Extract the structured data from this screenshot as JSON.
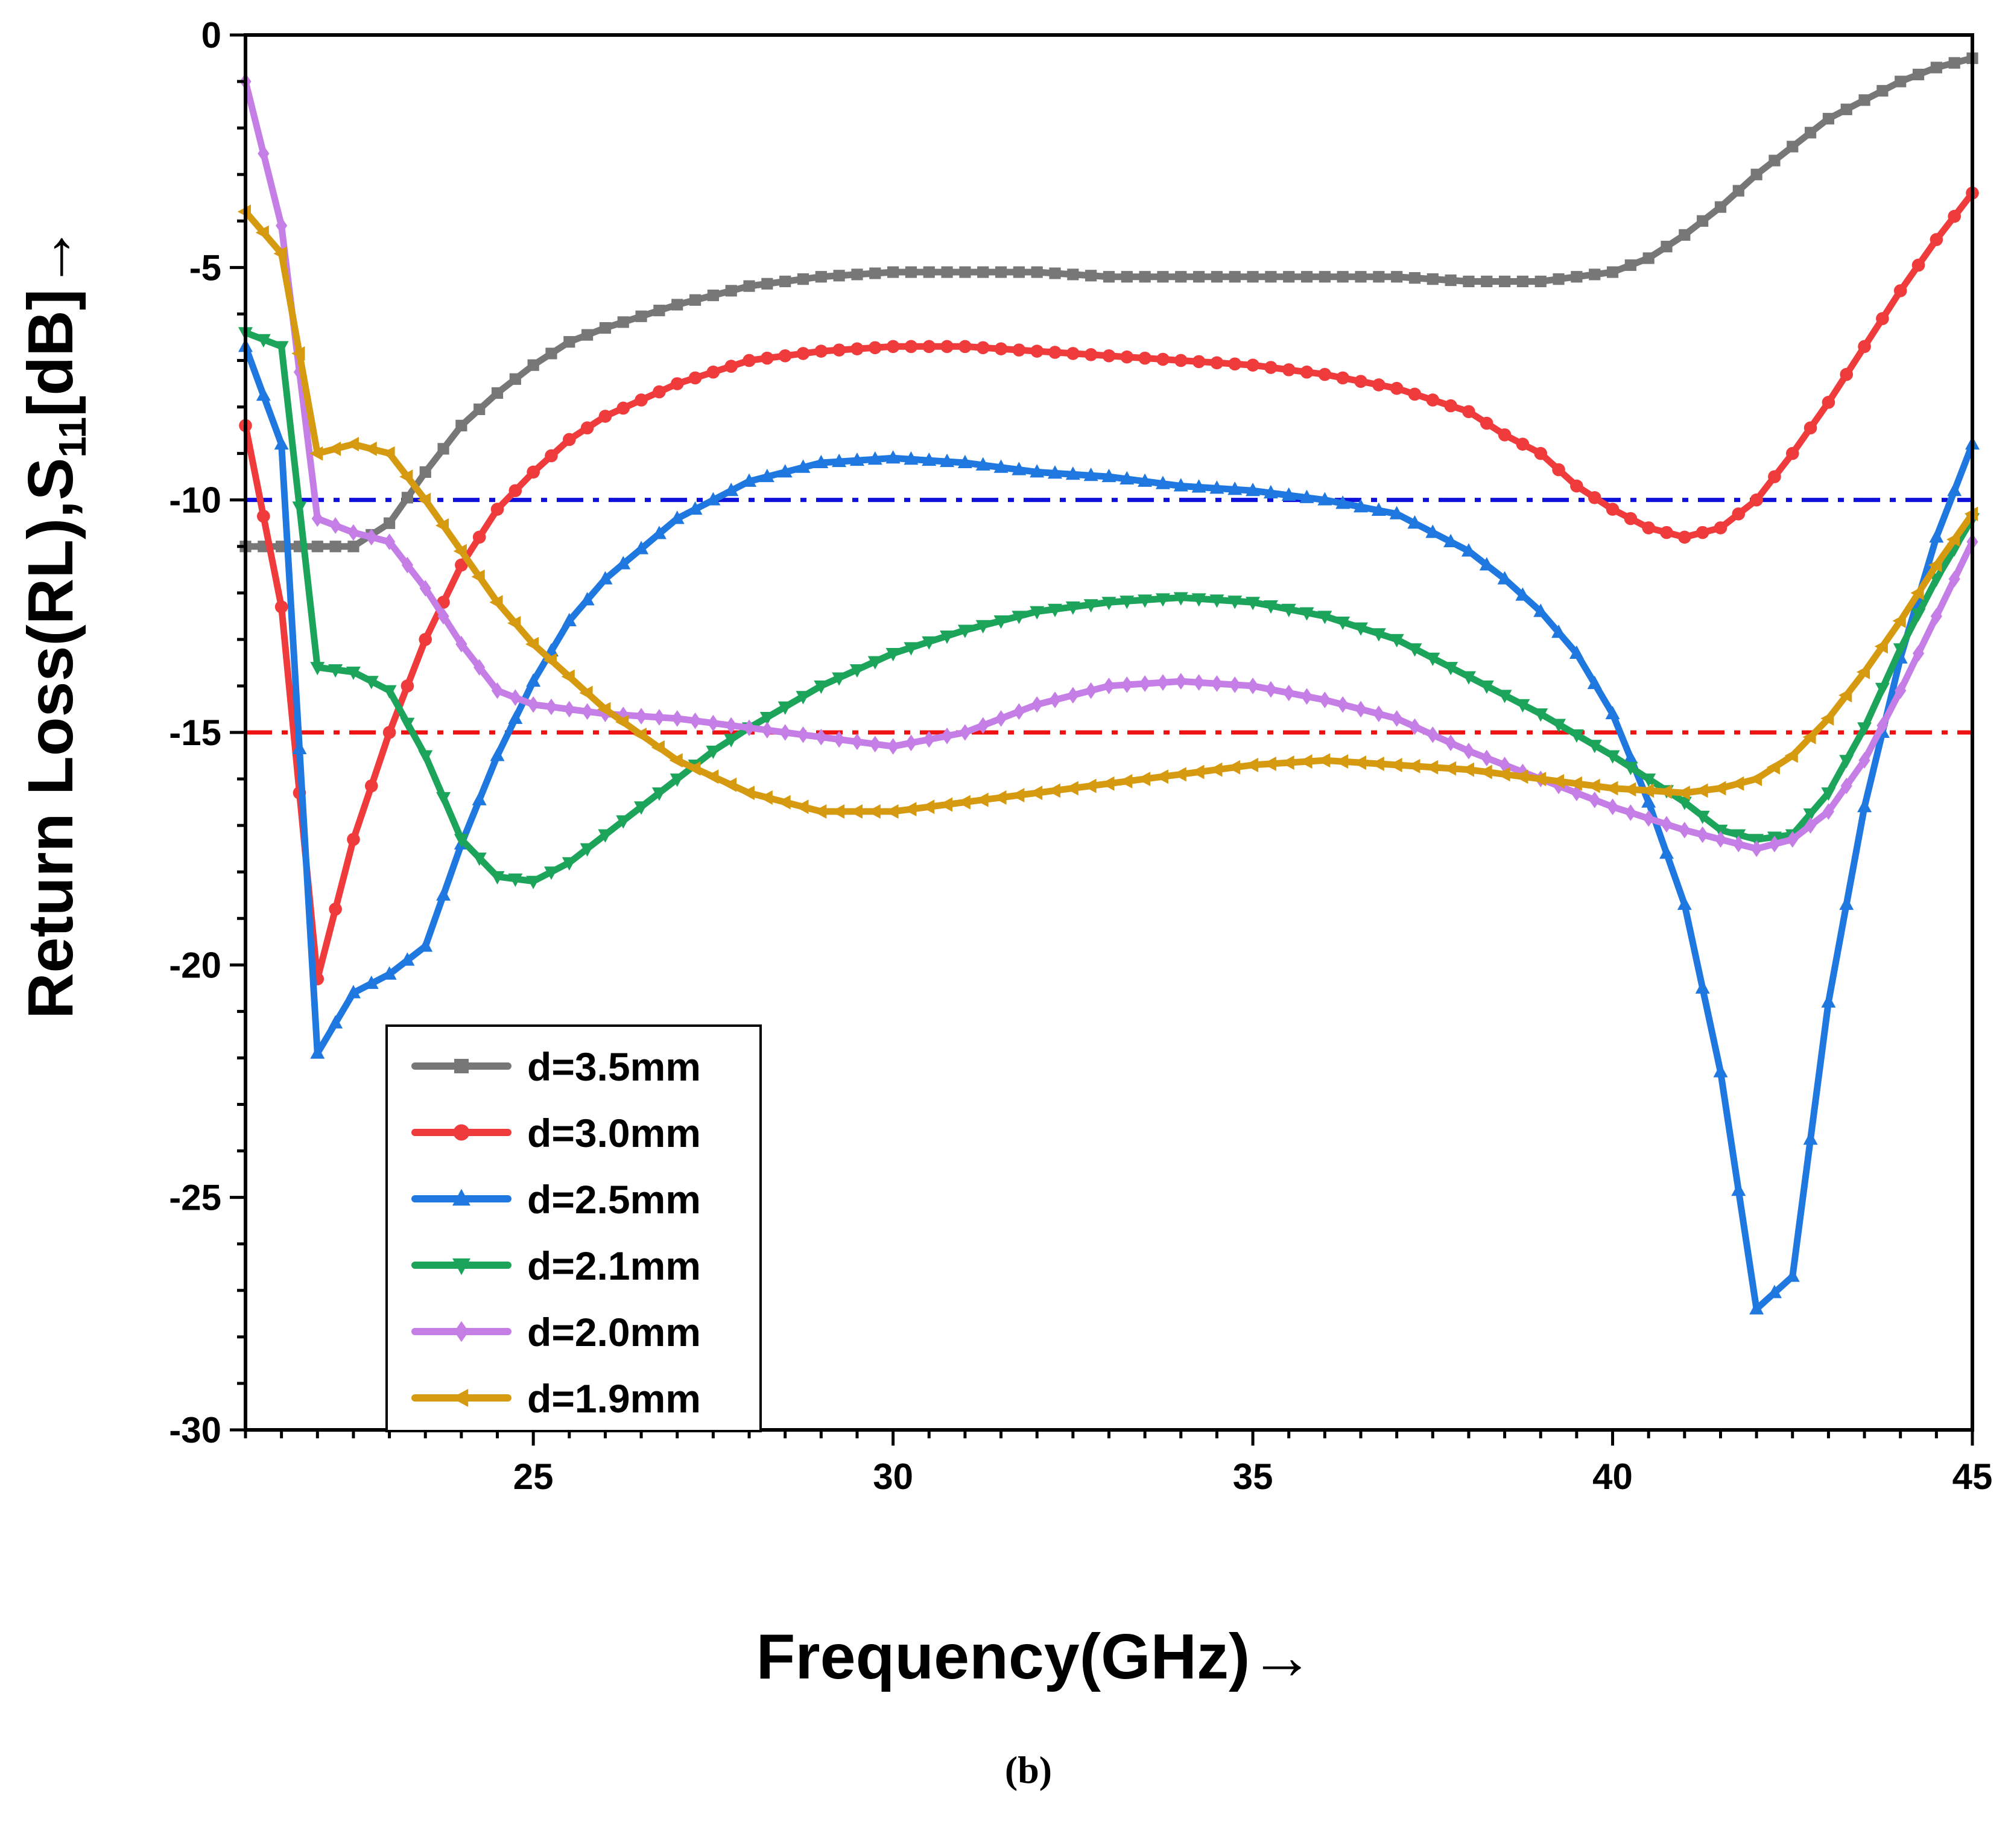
{
  "chart_data": {
    "type": "line",
    "title": "",
    "xlabel": "Frequency(GHz)→",
    "ylabel_parts": {
      "main": "Return Loss(RL),S",
      "sub": "11",
      "tail": "[dB]→"
    },
    "xlim": [
      21,
      45
    ],
    "ylim": [
      -30,
      0
    ],
    "x_ticks": [
      25,
      30,
      35,
      40,
      45
    ],
    "y_ticks": [
      0,
      -5,
      -10,
      -15,
      -20,
      -25,
      -30
    ],
    "x_tick_labels": [
      "25",
      "30",
      "35",
      "40",
      "45"
    ],
    "y_tick_labels": [
      "0",
      "-5",
      "-10",
      "-15",
      "-20",
      "-25",
      "-30"
    ],
    "x_minor_step": 0.5,
    "y_minor_step": 1,
    "grid": false,
    "legend_position": "bottom-left",
    "panel_label": "(b)",
    "reference_lines": [
      {
        "name": "-10 dB",
        "y": -10,
        "color": "#1010dd",
        "style": "dash-dot"
      },
      {
        "name": "-15 dB",
        "y": -15,
        "color": "#ee1111",
        "style": "dash-dot"
      }
    ],
    "series": [
      {
        "name": "d=3.5mm",
        "color": "#777777",
        "marker": "square",
        "points": [
          [
            21,
            -11
          ],
          [
            22,
            -11
          ],
          [
            22.5,
            -11
          ],
          [
            23,
            -10.5
          ],
          [
            23.5,
            -9.4
          ],
          [
            24,
            -8.4
          ],
          [
            24.5,
            -7.7
          ],
          [
            25,
            -7.1
          ],
          [
            25.5,
            -6.6
          ],
          [
            26,
            -6.3
          ],
          [
            27,
            -5.8
          ],
          [
            28,
            -5.4
          ],
          [
            29,
            -5.2
          ],
          [
            30,
            -5.1
          ],
          [
            31,
            -5.1
          ],
          [
            32,
            -5.1
          ],
          [
            33,
            -5.2
          ],
          [
            34,
            -5.2
          ],
          [
            35,
            -5.2
          ],
          [
            36,
            -5.2
          ],
          [
            37,
            -5.2
          ],
          [
            38,
            -5.3
          ],
          [
            39,
            -5.3
          ],
          [
            39.5,
            -5.2
          ],
          [
            40,
            -5.1
          ],
          [
            40.5,
            -4.8
          ],
          [
            41,
            -4.3
          ],
          [
            41.5,
            -3.7
          ],
          [
            42,
            -3
          ],
          [
            42.5,
            -2.4
          ],
          [
            43,
            -1.8
          ],
          [
            43.5,
            -1.4
          ],
          [
            44,
            -1
          ],
          [
            44.5,
            -0.7
          ],
          [
            45,
            -0.5
          ]
        ]
      },
      {
        "name": "d=3.0mm",
        "color": "#ef3b3b",
        "marker": "circle",
        "points": [
          [
            21,
            -8.4
          ],
          [
            21.5,
            -12.3
          ],
          [
            22,
            -20.3
          ],
          [
            22.5,
            -17.3
          ],
          [
            23,
            -15
          ],
          [
            23.5,
            -13
          ],
          [
            24,
            -11.4
          ],
          [
            24.5,
            -10.2
          ],
          [
            25,
            -9.4
          ],
          [
            25.5,
            -8.7
          ],
          [
            26,
            -8.2
          ],
          [
            27,
            -7.5
          ],
          [
            28,
            -7
          ],
          [
            29,
            -6.8
          ],
          [
            30,
            -6.7
          ],
          [
            31,
            -6.7
          ],
          [
            32,
            -6.8
          ],
          [
            33,
            -6.9
          ],
          [
            34,
            -7
          ],
          [
            35,
            -7.1
          ],
          [
            36,
            -7.3
          ],
          [
            37,
            -7.6
          ],
          [
            38,
            -8.1
          ],
          [
            38.5,
            -8.6
          ],
          [
            39,
            -9
          ],
          [
            39.5,
            -9.7
          ],
          [
            40,
            -10.2
          ],
          [
            40.5,
            -10.6
          ],
          [
            41,
            -10.8
          ],
          [
            41.5,
            -10.6
          ],
          [
            42,
            -10
          ],
          [
            42.5,
            -9
          ],
          [
            43,
            -7.9
          ],
          [
            43.5,
            -6.7
          ],
          [
            44,
            -5.5
          ],
          [
            44.5,
            -4.4
          ],
          [
            45,
            -3.4
          ]
        ]
      },
      {
        "name": "d=2.5mm",
        "color": "#1f77e0",
        "marker": "triangle-up",
        "points": [
          [
            21,
            -6.7
          ],
          [
            21.5,
            -8.8
          ],
          [
            22,
            -21.9
          ],
          [
            22.5,
            -20.6
          ],
          [
            23,
            -20.2
          ],
          [
            23.5,
            -19.6
          ],
          [
            24,
            -17.4
          ],
          [
            24.5,
            -15.5
          ],
          [
            25,
            -13.9
          ],
          [
            25.5,
            -12.6
          ],
          [
            26,
            -11.7
          ],
          [
            27,
            -10.4
          ],
          [
            28,
            -9.6
          ],
          [
            29,
            -9.2
          ],
          [
            30,
            -9.1
          ],
          [
            31,
            -9.2
          ],
          [
            32,
            -9.4
          ],
          [
            33,
            -9.5
          ],
          [
            34,
            -9.7
          ],
          [
            35,
            -9.8
          ],
          [
            36,
            -10
          ],
          [
            37,
            -10.3
          ],
          [
            37.5,
            -10.7
          ],
          [
            38,
            -11.1
          ],
          [
            38.5,
            -11.7
          ],
          [
            39,
            -12.4
          ],
          [
            39.5,
            -13.3
          ],
          [
            40,
            -14.6
          ],
          [
            40.5,
            -16.5
          ],
          [
            41,
            -18.7
          ],
          [
            41.5,
            -22.3
          ],
          [
            42,
            -27.4
          ],
          [
            42.5,
            -26.7
          ],
          [
            43,
            -20.8
          ],
          [
            43.5,
            -16.6
          ],
          [
            44,
            -13.4
          ],
          [
            44.5,
            -10.8
          ],
          [
            45,
            -8.8
          ]
        ]
      },
      {
        "name": "d=2.1mm",
        "color": "#1ba45a",
        "marker": "triangle-down",
        "points": [
          [
            21,
            -6.4
          ],
          [
            21.5,
            -6.7
          ],
          [
            22,
            -13.6
          ],
          [
            22.5,
            -13.7
          ],
          [
            23,
            -14.1
          ],
          [
            23.5,
            -15.5
          ],
          [
            24,
            -17.3
          ],
          [
            24.5,
            -18.1
          ],
          [
            25,
            -18.2
          ],
          [
            25.5,
            -17.8
          ],
          [
            26,
            -17.2
          ],
          [
            26.5,
            -16.6
          ],
          [
            27,
            -16
          ],
          [
            27.5,
            -15.4
          ],
          [
            28,
            -14.9
          ],
          [
            29,
            -14
          ],
          [
            30,
            -13.3
          ],
          [
            31,
            -12.8
          ],
          [
            32,
            -12.4
          ],
          [
            33,
            -12.2
          ],
          [
            34,
            -12.1
          ],
          [
            35,
            -12.2
          ],
          [
            36,
            -12.5
          ],
          [
            37,
            -13
          ],
          [
            38,
            -13.8
          ],
          [
            38.5,
            -14.2
          ],
          [
            39,
            -14.6
          ],
          [
            40,
            -15.5
          ],
          [
            41,
            -16.5
          ],
          [
            41.5,
            -17.1
          ],
          [
            42,
            -17.3
          ],
          [
            42.5,
            -17.2
          ],
          [
            43,
            -16.3
          ],
          [
            43.5,
            -14.9
          ],
          [
            44,
            -13.2
          ],
          [
            44.5,
            -11.7
          ],
          [
            45,
            -10.4
          ]
        ]
      },
      {
        "name": "d=2.0mm",
        "color": "#c47ee6",
        "marker": "diamond",
        "points": [
          [
            21,
            -1
          ],
          [
            21.5,
            -4.1
          ],
          [
            22,
            -10.4
          ],
          [
            22.5,
            -10.7
          ],
          [
            23,
            -10.9
          ],
          [
            23.5,
            -11.9
          ],
          [
            24,
            -13.1
          ],
          [
            24.5,
            -14.1
          ],
          [
            25,
            -14.4
          ],
          [
            25.5,
            -14.5
          ],
          [
            26,
            -14.6
          ],
          [
            27,
            -14.7
          ],
          [
            28,
            -14.9
          ],
          [
            29,
            -15.1
          ],
          [
            30,
            -15.3
          ],
          [
            31,
            -15
          ],
          [
            32,
            -14.4
          ],
          [
            33,
            -14
          ],
          [
            34,
            -13.9
          ],
          [
            35,
            -14
          ],
          [
            36,
            -14.3
          ],
          [
            37,
            -14.7
          ],
          [
            38,
            -15.4
          ],
          [
            39,
            -16
          ],
          [
            40,
            -16.6
          ],
          [
            41,
            -17.1
          ],
          [
            41.5,
            -17.3
          ],
          [
            42,
            -17.5
          ],
          [
            42.5,
            -17.3
          ],
          [
            43,
            -16.7
          ],
          [
            43.5,
            -15.6
          ],
          [
            44,
            -14.1
          ],
          [
            44.5,
            -12.5
          ],
          [
            45,
            -10.9
          ]
        ]
      },
      {
        "name": "d=1.9mm",
        "color": "#d69a10",
        "marker": "triangle-left",
        "points": [
          [
            21,
            -3.8
          ],
          [
            21.5,
            -4.7
          ],
          [
            22,
            -9
          ],
          [
            22.5,
            -8.8
          ],
          [
            23,
            -9
          ],
          [
            23.5,
            -10
          ],
          [
            24,
            -11.1
          ],
          [
            24.5,
            -12.2
          ],
          [
            25,
            -13.1
          ],
          [
            25.5,
            -13.8
          ],
          [
            26,
            -14.5
          ],
          [
            27,
            -15.6
          ],
          [
            28,
            -16.3
          ],
          [
            29,
            -16.7
          ],
          [
            30,
            -16.7
          ],
          [
            31,
            -16.5
          ],
          [
            32,
            -16.3
          ],
          [
            33,
            -16.1
          ],
          [
            34,
            -15.9
          ],
          [
            35,
            -15.7
          ],
          [
            36,
            -15.6
          ],
          [
            37,
            -15.7
          ],
          [
            38,
            -15.8
          ],
          [
            39,
            -16
          ],
          [
            40,
            -16.2
          ],
          [
            41,
            -16.3
          ],
          [
            41.5,
            -16.2
          ],
          [
            42,
            -16
          ],
          [
            42.5,
            -15.5
          ],
          [
            43,
            -14.7
          ],
          [
            43.5,
            -13.7
          ],
          [
            44,
            -12.6
          ],
          [
            44.5,
            -11.4
          ],
          [
            45,
            -10.3
          ]
        ]
      }
    ]
  }
}
